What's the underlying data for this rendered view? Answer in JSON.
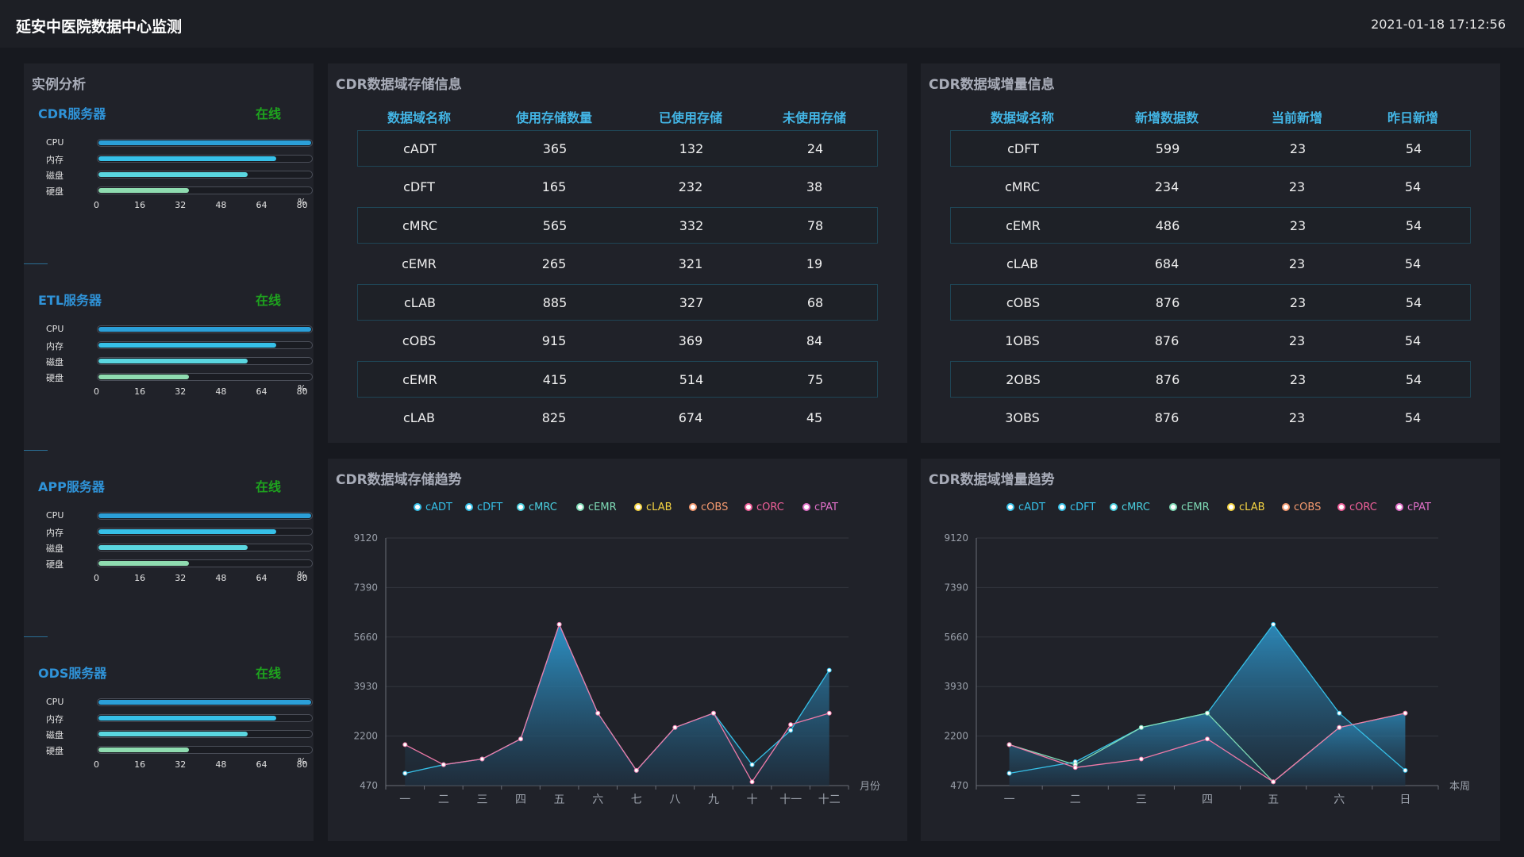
{
  "header": {
    "title": "延安中医院数据中心监测",
    "datetime": "2021-01-18 17:12:56"
  },
  "instance": {
    "title": "实例分析",
    "metric_labels": [
      "CPU",
      "内存",
      "磁盘",
      "硬盘"
    ],
    "axis_ticks": [
      "0",
      "16",
      "32",
      "48",
      "64",
      "80"
    ],
    "unit": "%",
    "servers": [
      {
        "name": "CDR服务器",
        "status": "在线",
        "usage": [
          80,
          67,
          56,
          34
        ]
      },
      {
        "name": "ETL服务器",
        "status": "在线",
        "usage": [
          80,
          67,
          56,
          34
        ]
      },
      {
        "name": "APP服务器",
        "status": "在线",
        "usage": [
          80,
          67,
          56,
          34
        ]
      },
      {
        "name": "ODS服务器",
        "status": "在线",
        "usage": [
          80,
          67,
          56,
          34
        ]
      }
    ],
    "colors": [
      "#2b9fd8",
      "#36c0e8",
      "#5ad6e0",
      "#8fdcb0"
    ]
  },
  "storage_table": {
    "title": "CDR数据域存储信息",
    "columns": [
      "数据域名称",
      "使用存储数量",
      "已使用存储",
      "未使用存储"
    ],
    "rows": [
      [
        "cADT",
        "365",
        "132",
        "24"
      ],
      [
        "cDFT",
        "165",
        "232",
        "38"
      ],
      [
        "cMRC",
        "565",
        "332",
        "78"
      ],
      [
        "cEMR",
        "265",
        "321",
        "19"
      ],
      [
        "cLAB",
        "885",
        "327",
        "68"
      ],
      [
        "cOBS",
        "915",
        "369",
        "84"
      ],
      [
        "cEMR",
        "415",
        "514",
        "75"
      ],
      [
        "cLAB",
        "825",
        "674",
        "45"
      ]
    ]
  },
  "increment_table": {
    "title": "CDR数据域增量信息",
    "columns": [
      "数据域名称",
      "新增数据数",
      "当前新增",
      "昨日新增"
    ],
    "rows": [
      [
        "cDFT",
        "599",
        "23",
        "54"
      ],
      [
        "cMRC",
        "234",
        "23",
        "54"
      ],
      [
        "cEMR",
        "486",
        "23",
        "54"
      ],
      [
        "cLAB",
        "684",
        "23",
        "54"
      ],
      [
        "cOBS",
        "876",
        "23",
        "54"
      ],
      [
        "1OBS",
        "876",
        "23",
        "54"
      ],
      [
        "2OBS",
        "876",
        "23",
        "54"
      ],
      [
        "3OBS",
        "876",
        "23",
        "54"
      ]
    ]
  },
  "legend": {
    "names": [
      "cADT",
      "cDFT",
      "cMRC",
      "cEMR",
      "cLAB",
      "cOBS",
      "cORC",
      "cPAT"
    ],
    "colors": [
      "#36c0e8",
      "#36c0e8",
      "#4ad0e0",
      "#7fdbb6",
      "#f5d442",
      "#f59a6f",
      "#f0609a",
      "#e070c8"
    ]
  },
  "chart_data": [
    {
      "type": "area",
      "title": "CDR数据域存储趋势",
      "x": [
        "一",
        "二",
        "三",
        "四",
        "五",
        "六",
        "七",
        "八",
        "九",
        "十",
        "十一",
        "十二"
      ],
      "xlabel": "月份",
      "yticks": [
        470,
        2200,
        3930,
        5660,
        7390,
        9120
      ],
      "ylim": [
        470,
        9120
      ],
      "series": [
        {
          "name": "cADT",
          "color": "#36c0e8",
          "values": [
            900,
            1200,
            1400,
            2100,
            6100,
            3000,
            1000,
            2500,
            3000,
            1200,
            2400,
            4500
          ]
        },
        {
          "name": "cPAT",
          "color": "#f07aa8",
          "values": [
            1900,
            1200,
            1400,
            2100,
            6100,
            3000,
            1000,
            2500,
            3000,
            600,
            2600,
            3000
          ]
        }
      ]
    },
    {
      "type": "area",
      "title": "CDR数据域增量趋势",
      "x": [
        "一",
        "二",
        "三",
        "四",
        "五",
        "六",
        "日"
      ],
      "xlabel": "本周",
      "yticks": [
        470,
        2200,
        3930,
        5660,
        7390,
        9120
      ],
      "ylim": [
        470,
        9120
      ],
      "series": [
        {
          "name": "cADT",
          "color": "#36c0e8",
          "values": [
            900,
            1300,
            2500,
            3000,
            6100,
            3000,
            1000
          ]
        },
        {
          "name": "cEMR",
          "color": "#7fdbb6",
          "values": [
            1900,
            1200,
            2500,
            3000,
            600,
            2500,
            3000
          ]
        },
        {
          "name": "cPAT",
          "color": "#f07aa8",
          "values": [
            1900,
            1100,
            1400,
            2100,
            600,
            2500,
            3000
          ]
        }
      ]
    }
  ]
}
